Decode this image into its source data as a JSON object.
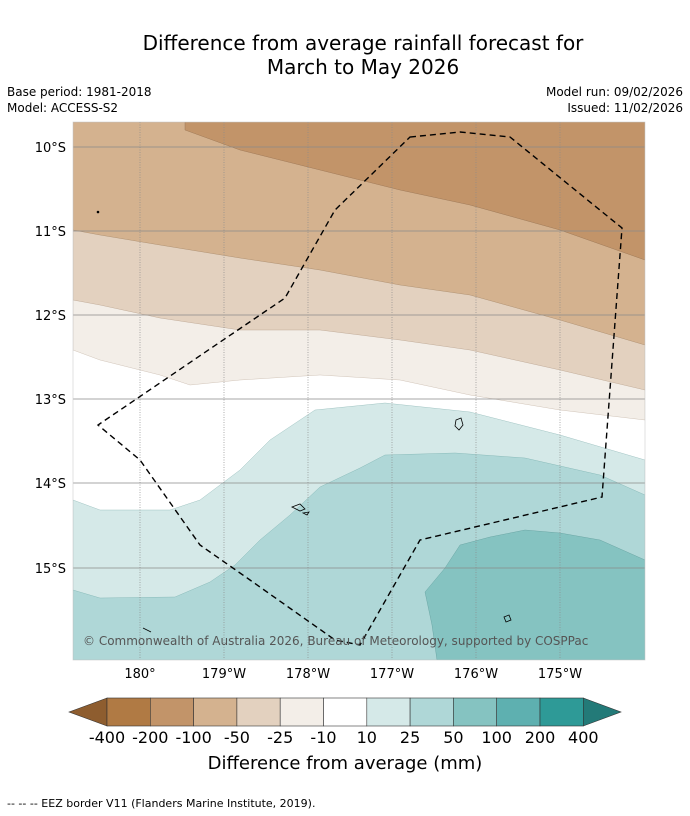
{
  "title_line1": "Difference from average rainfall forecast for",
  "title_line2": "March to May 2026",
  "meta": {
    "base_period": "Base period: 1981-2018",
    "model": "Model: ACCESS-S2",
    "model_run": "Model run: 09/02/2026",
    "issued": "Issued: 11/02/2026"
  },
  "map": {
    "lat_labels": [
      "10°S",
      "11°S",
      "12°S",
      "13°S",
      "14°S",
      "15°S"
    ],
    "lon_labels": [
      "180°",
      "179°W",
      "178°W",
      "177°W",
      "176°W",
      "175°W"
    ],
    "copyright": "© Commonwealth of Australia 2026, Bureau of Meteorology, supported by COSPPac"
  },
  "legend": {
    "ticks": [
      "-400",
      "-200",
      "-100",
      "-50",
      "-25",
      "-10",
      "10",
      "25",
      "50",
      "100",
      "200",
      "400"
    ],
    "colors": {
      "below_400": "#8e5d2f",
      "n400_n200": "#b07a44",
      "n200_n100": "#c29469",
      "n100_n50": "#d4b28f",
      "n50_n25": "#e3d1bf",
      "n25_n10": "#f3eee8",
      "n10_10": "#ffffff",
      "p10_25": "#d5e9e8",
      "p25_50": "#afd7d7",
      "p50_100": "#85c3c1",
      "p100_200": "#5eb0b0",
      "p200_400": "#2e9a97",
      "above_400": "#237a78"
    },
    "caption": "Difference from average (mm)"
  },
  "footer": "--  --  -- EEZ border V11 (Flanders Marine Institute, 2019)."
}
